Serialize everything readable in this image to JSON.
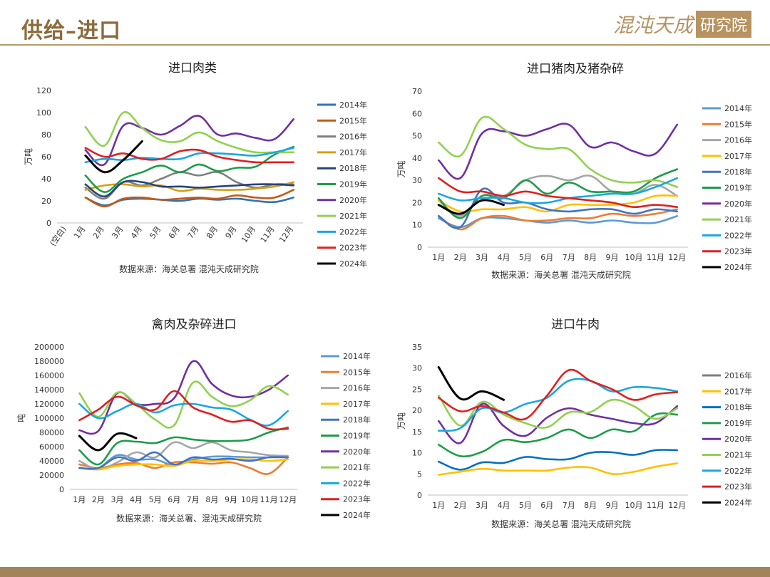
{
  "header": {
    "title": "供给–进口",
    "logo_text": "混沌天成",
    "logo_box": "研究院"
  },
  "chart_data": [
    {
      "type": "line",
      "title": "进口肉类",
      "ylabel": "万吨",
      "source": "数据来源：海关总署 混沌天成研究院",
      "ylim": [
        0,
        120
      ],
      "yticks": [
        0,
        20,
        40,
        60,
        80,
        100,
        120
      ],
      "categories": [
        "(空白)",
        "1月",
        "2月",
        "3月",
        "4月",
        "5月",
        "6月",
        "7月",
        "8月",
        "9月",
        "10月",
        "11月",
        "12月"
      ],
      "legend_position": "right",
      "series": [
        {
          "name": "2014年",
          "color": "#2e75b6",
          "values": [
            null,
            23,
            16,
            21,
            22,
            21,
            20,
            22,
            21,
            22,
            20,
            19,
            23
          ]
        },
        {
          "name": "2015年",
          "color": "#c55a11",
          "values": [
            null,
            23,
            15,
            22,
            23,
            21,
            22,
            23,
            22,
            25,
            23,
            23,
            30
          ]
        },
        {
          "name": "2016年",
          "color": "#7f7f7f",
          "values": [
            null,
            32,
            22,
            37,
            34,
            40,
            46,
            43,
            46,
            37,
            32,
            35,
            35
          ]
        },
        {
          "name": "2017年",
          "color": "#d4a017",
          "values": [
            null,
            30,
            34,
            35,
            33,
            34,
            29,
            31,
            30,
            30,
            31,
            33,
            37
          ]
        },
        {
          "name": "2018年",
          "color": "#264478",
          "values": [
            null,
            35,
            24,
            37,
            37,
            33,
            33,
            32,
            33,
            34,
            35,
            35,
            34
          ]
        },
        {
          "name": "2019年",
          "color": "#1e9c4a",
          "values": [
            null,
            43,
            28,
            40,
            46,
            52,
            46,
            53,
            47,
            50,
            51,
            62,
            69
          ]
        },
        {
          "name": "2020年",
          "color": "#7030a0",
          "values": [
            null,
            66,
            53,
            88,
            86,
            80,
            88,
            97,
            80,
            81,
            77,
            76,
            94
          ]
        },
        {
          "name": "2021年",
          "color": "#92d050",
          "values": [
            null,
            87,
            70,
            100,
            86,
            75,
            74,
            82,
            74,
            68,
            64,
            64,
            64
          ]
        },
        {
          "name": "2022年",
          "color": "#1aa7e0",
          "values": [
            null,
            55,
            58,
            57,
            59,
            58,
            58,
            63,
            63,
            62,
            61,
            64,
            68
          ]
        },
        {
          "name": "2023年",
          "color": "#e02020",
          "values": [
            null,
            68,
            60,
            63,
            58,
            58,
            65,
            66,
            60,
            57,
            55,
            55,
            55
          ]
        },
        {
          "name": "2024年",
          "color": "#000000",
          "values": [
            null,
            61,
            46,
            57,
            74,
            null,
            null,
            null,
            null,
            null,
            null,
            null,
            null
          ]
        }
      ]
    },
    {
      "type": "line",
      "title": "进口猪肉及猪杂碎",
      "ylabel": "万吨",
      "source": "数据来源：海关总署 混沌天成研究院",
      "ylim": [
        0,
        70
      ],
      "yticks": [
        0,
        10,
        20,
        30,
        40,
        50,
        60,
        70
      ],
      "categories": [
        "1月",
        "2月",
        "3月",
        "4月",
        "5月",
        "6月",
        "7月",
        "8月",
        "9月",
        "10月",
        "11月",
        "12月"
      ],
      "legend_position": "right",
      "series": [
        {
          "name": "2014年",
          "color": "#5b9bd5",
          "values": [
            13,
            9,
            13,
            13,
            12,
            11,
            12,
            11,
            12,
            11,
            11,
            14
          ]
        },
        {
          "name": "2015年",
          "color": "#ed7d31",
          "values": [
            14,
            8,
            13,
            14,
            12,
            12,
            13,
            13,
            15,
            14,
            15,
            17
          ]
        },
        {
          "name": "2016年",
          "color": "#a5a5a5",
          "values": [
            21,
            14,
            23,
            23,
            30,
            32,
            30,
            32,
            25,
            24,
            28,
            23
          ]
        },
        {
          "name": "2017年",
          "color": "#ffc000",
          "values": [
            21,
            16,
            17,
            17,
            18,
            16,
            19,
            19,
            19,
            20,
            23,
            23
          ]
        },
        {
          "name": "2018年",
          "color": "#4472c4",
          "values": [
            14,
            9,
            26,
            20,
            20,
            17,
            16,
            17,
            17,
            15,
            17,
            16
          ]
        },
        {
          "name": "2019年",
          "color": "#1e9c4a",
          "values": [
            22,
            13,
            23,
            22,
            30,
            24,
            29,
            25,
            25,
            25,
            31,
            35
          ]
        },
        {
          "name": "2020年",
          "color": "#7030a0",
          "values": [
            39,
            31,
            51,
            52,
            50,
            53,
            55,
            45,
            47,
            43,
            42,
            55
          ]
        },
        {
          "name": "2021年",
          "color": "#92d050",
          "values": [
            47,
            41,
            58,
            53,
            46,
            44,
            44,
            35,
            30,
            29,
            30,
            27
          ]
        },
        {
          "name": "2022年",
          "color": "#1aa7e0",
          "values": [
            24,
            21,
            22,
            22,
            20,
            20,
            22,
            23,
            24,
            24,
            27,
            31
          ]
        },
        {
          "name": "2023年",
          "color": "#e02020",
          "values": [
            31,
            25,
            25,
            23,
            25,
            23,
            22,
            21,
            20,
            18,
            19,
            18
          ]
        },
        {
          "name": "2024年",
          "color": "#000000",
          "values": [
            19,
            15,
            21,
            19,
            null,
            null,
            null,
            null,
            null,
            null,
            null,
            null
          ]
        }
      ]
    },
    {
      "type": "line",
      "title": "禽肉及杂碎进口",
      "ylabel": "吨",
      "source": "数据来源：海关总署、混沌天成研究院",
      "ylim": [
        0,
        200000
      ],
      "yticks": [
        0,
        20000,
        40000,
        60000,
        80000,
        100000,
        120000,
        140000,
        160000,
        180000,
        200000
      ],
      "categories": [
        "1月",
        "2月",
        "3月",
        "4月",
        "5月",
        "6月",
        "7月",
        "8月",
        "9月",
        "10月",
        "11月",
        "12月"
      ],
      "legend_position": "right",
      "series": [
        {
          "name": "2014年",
          "color": "#5b9bd5",
          "values": [
            30000,
            30000,
            48000,
            42000,
            42000,
            34000,
            42000,
            46000,
            46000,
            45000,
            45000,
            45000
          ]
        },
        {
          "name": "2015年",
          "color": "#ed7d31",
          "values": [
            35000,
            30000,
            35000,
            37000,
            30000,
            38000,
            38000,
            36000,
            38000,
            30000,
            22000,
            45000
          ]
        },
        {
          "name": "2016年",
          "color": "#a5a5a5",
          "values": [
            40000,
            28000,
            38000,
            52000,
            45000,
            66000,
            58000,
            66000,
            55000,
            52000,
            48000,
            47000
          ]
        },
        {
          "name": "2017年",
          "color": "#ffc000",
          "values": [
            30000,
            28000,
            33000,
            35000,
            35000,
            33000,
            40000,
            40000,
            42000,
            42000,
            40000,
            42000
          ]
        },
        {
          "name": "2018年",
          "color": "#4472c4",
          "values": [
            30000,
            30000,
            45000,
            40000,
            52000,
            35000,
            45000,
            42000,
            43000,
            40000,
            45000,
            45000
          ]
        },
        {
          "name": "2019年",
          "color": "#1e9c4a",
          "values": [
            55000,
            35000,
            65000,
            67000,
            65000,
            73000,
            70000,
            68000,
            68000,
            70000,
            80000,
            87000
          ]
        },
        {
          "name": "2020年",
          "color": "#7030a0",
          "values": [
            83000,
            82000,
            135000,
            120000,
            120000,
            128000,
            180000,
            148000,
            132000,
            130000,
            140000,
            160000
          ]
        },
        {
          "name": "2021年",
          "color": "#92d050",
          "values": [
            135000,
            102000,
            136000,
            120000,
            98000,
            90000,
            150000,
            130000,
            117000,
            125000,
            145000,
            133000
          ]
        },
        {
          "name": "2022年",
          "color": "#1aa7e0",
          "values": [
            120000,
            100000,
            110000,
            120000,
            108000,
            118000,
            120000,
            115000,
            112000,
            98000,
            90000,
            110000
          ]
        },
        {
          "name": "2023年",
          "color": "#e02020",
          "values": [
            97000,
            112000,
            130000,
            118000,
            112000,
            138000,
            115000,
            105000,
            95000,
            97000,
            85000,
            85000
          ]
        },
        {
          "name": "2024年",
          "color": "#000000",
          "values": [
            75000,
            55000,
            78000,
            72000,
            null,
            null,
            null,
            null,
            null,
            null,
            null,
            null
          ]
        }
      ]
    },
    {
      "type": "line",
      "title": "进口牛肉",
      "ylabel": "万吨",
      "source": "数据来源：海关总署 混沌天成研究院",
      "ylim": [
        0,
        35
      ],
      "yticks": [
        0,
        5,
        10,
        15,
        20,
        25,
        30,
        35
      ],
      "categories": [
        "1月",
        "2月",
        "3月",
        "4月",
        "5月",
        "6月",
        "7月",
        "8月",
        "9月",
        "10月",
        "11月",
        "12月"
      ],
      "legend_position": "right",
      "series": [
        {
          "name": "2016年",
          "color": "#7f7f7f",
          "values": [
            null,
            null,
            null,
            null,
            null,
            null,
            null,
            null,
            null,
            null,
            null,
            null
          ]
        },
        {
          "name": "2017年",
          "color": "#ffc000",
          "values": [
            4.8,
            5.5,
            6.2,
            5.8,
            5.8,
            5.8,
            6.5,
            6.5,
            5,
            5.5,
            6.7,
            7.5
          ]
        },
        {
          "name": "2018年",
          "color": "#0070c0",
          "values": [
            7.9,
            6,
            7.7,
            7.6,
            9,
            8.5,
            8.5,
            10,
            10.1,
            9.5,
            10.6,
            10.6
          ]
        },
        {
          "name": "2019年",
          "color": "#1e9c4a",
          "values": [
            11.9,
            9.2,
            10.2,
            13,
            12.5,
            13.5,
            15.5,
            13.5,
            15.5,
            15.1,
            19,
            19
          ]
        },
        {
          "name": "2020年",
          "color": "#7030a0",
          "values": [
            17.5,
            12.3,
            21.5,
            16.3,
            14,
            18.3,
            20.5,
            19,
            18,
            17,
            17,
            21
          ]
        },
        {
          "name": "2021年",
          "color": "#92d050",
          "values": [
            23.5,
            16.4,
            22,
            19,
            17,
            16,
            19.5,
            19.6,
            22.5,
            21,
            18,
            20.5
          ]
        },
        {
          "name": "2022年",
          "color": "#1aa7e0",
          "values": [
            15.2,
            15.8,
            20.5,
            19.5,
            21.5,
            23,
            27,
            27,
            24.5,
            25.5,
            25.3,
            24.5
          ]
        },
        {
          "name": "2023年",
          "color": "#e02020",
          "values": [
            23,
            19.8,
            21,
            19.5,
            18,
            23.5,
            29.5,
            27,
            25,
            22.5,
            23.8,
            24.3
          ]
        },
        {
          "name": "2024年",
          "color": "#000000",
          "values": [
            30.2,
            22.8,
            24.5,
            22.5,
            null,
            null,
            null,
            null,
            null,
            null,
            null,
            null
          ]
        }
      ]
    }
  ]
}
